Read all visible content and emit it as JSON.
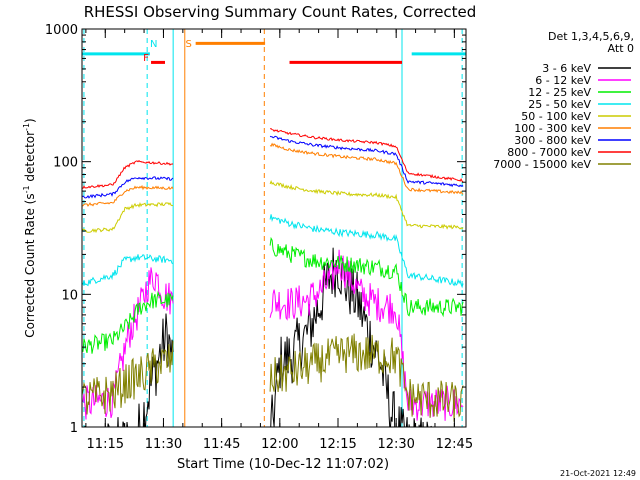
{
  "chart_data": {
    "type": "line",
    "title": "RHESSI Observing Summary Count Rates, Corrected",
    "xlabel": "Start Time (10-Dec-12 11:07:02)",
    "ylabel_main": "Corrected Count Rate (s",
    "ylabel_sup1": "-1",
    "ylabel_mid": " detector",
    "ylabel_sup2": "-1",
    "ylabel_end": ")",
    "y_scale": "log",
    "ylim": [
      1,
      1000
    ],
    "xlim_minutes": [
      2,
      101
    ],
    "x_tick_labels": [
      "11:15",
      "11:30",
      "11:45",
      "12:00",
      "12:15",
      "12:30",
      "12:45"
    ],
    "x_tick_minutes": [
      8,
      23,
      38,
      53,
      68,
      83,
      98
    ],
    "y_tick_labels": [
      "1",
      "10",
      "100",
      "1000"
    ],
    "y_tick_values": [
      1,
      10,
      100,
      1000
    ],
    "footer_date": "21-Oct-2021 12:49",
    "legend": {
      "header_line1": "Det 1,3,4,5,6,9,",
      "header_line2": "Att 0",
      "entries": [
        {
          "label": "3 - 6 keV",
          "color": "#000000"
        },
        {
          "label": "6 - 12 keV",
          "color": "#ff00ff"
        },
        {
          "label": "12 - 25 keV",
          "color": "#00ee00"
        },
        {
          "label": "25 - 50 keV",
          "color": "#00e5ee"
        },
        {
          "label": "50 - 100 keV",
          "color": "#cccc00"
        },
        {
          "label": "100 - 300 keV",
          "color": "#ff7f00"
        },
        {
          "label": "300 - 800 keV",
          "color": "#0000ff"
        },
        {
          "label": "800 - 7000 keV",
          "color": "#ff0000"
        },
        {
          "label": "7000 - 15000 keV",
          "color": "#808000"
        }
      ]
    },
    "flag_labels": [
      {
        "text": "N",
        "color": "#00e5ee",
        "x_minute": 20.5
      },
      {
        "text": "F",
        "color": "#ff0000",
        "x_minute": 18.5
      },
      {
        "text": "S",
        "color": "#ff7f00",
        "x_minute": 29.5
      }
    ],
    "flag_bars": [
      {
        "color": "#00e5ee",
        "x0": 2,
        "x1": 19.5,
        "y": 650
      },
      {
        "color": "#ff0000",
        "x0": 19.8,
        "x1": 23.4,
        "y": 560
      },
      {
        "color": "#ff7f00",
        "x0": 31.3,
        "x1": 49.2,
        "y": 780
      },
      {
        "color": "#ff0000",
        "x0": 55.5,
        "x1": 84.5,
        "y": 560
      },
      {
        "color": "#00e5ee",
        "x0": 87,
        "x1": 101,
        "y": 650
      }
    ],
    "vertical_lines": [
      {
        "x_minute": 2.5,
        "color": "#00e5ee",
        "style": "dashed"
      },
      {
        "x_minute": 18.8,
        "color": "#00e5ee",
        "style": "dashed"
      },
      {
        "x_minute": 25.5,
        "color": "#00e5ee",
        "style": "solid"
      },
      {
        "x_minute": 28.5,
        "color": "#ff7f00",
        "style": "solid"
      },
      {
        "x_minute": 49.0,
        "color": "#ff7f00",
        "style": "dashed"
      },
      {
        "x_minute": 84.5,
        "color": "#00e5ee",
        "style": "solid"
      },
      {
        "x_minute": 100.0,
        "color": "#00e5ee",
        "style": "dashed"
      }
    ],
    "segments": [
      {
        "x0": 2,
        "x1": 25.5
      },
      {
        "x0": 50.5,
        "x1": 100.5
      }
    ],
    "series": [
      {
        "name": "3 - 6 keV",
        "color": "#000000",
        "seg1": [
          [
            2,
            0.6
          ],
          [
            16,
            0.8
          ],
          [
            18,
            1.3
          ],
          [
            20,
            2.2
          ],
          [
            22,
            3.5
          ],
          [
            24,
            5
          ],
          [
            25.5,
            3
          ]
        ],
        "seg2": [
          [
            50.5,
            0.8
          ],
          [
            53,
            3
          ],
          [
            56,
            3.5
          ],
          [
            60,
            5
          ],
          [
            63,
            8
          ],
          [
            66,
            14
          ],
          [
            68,
            17
          ],
          [
            70,
            12
          ],
          [
            73,
            9
          ],
          [
            76,
            5
          ],
          [
            79,
            3
          ],
          [
            82,
            1.2
          ],
          [
            85,
            0.8
          ],
          [
            100.5,
            0.6
          ]
        ],
        "noise": 0.5
      },
      {
        "name": "6 - 12 keV",
        "color": "#ff00ff",
        "seg1": [
          [
            2,
            1.5
          ],
          [
            10,
            1.6
          ],
          [
            14,
            5
          ],
          [
            17,
            8
          ],
          [
            19,
            12
          ],
          [
            21,
            14
          ],
          [
            23,
            10
          ],
          [
            25.5,
            9
          ]
        ],
        "seg2": [
          [
            50.5,
            9
          ],
          [
            56,
            8.5
          ],
          [
            60,
            9
          ],
          [
            64,
            11
          ],
          [
            67,
            14
          ],
          [
            68,
            18
          ],
          [
            70,
            15
          ],
          [
            74,
            10
          ],
          [
            78,
            8.5
          ],
          [
            83,
            8
          ],
          [
            86,
            1.5
          ],
          [
            100.5,
            1.5
          ]
        ],
        "noise": 0.3
      },
      {
        "name": "12 - 25 keV",
        "color": "#00ee00",
        "seg1": [
          [
            2,
            4
          ],
          [
            10,
            4.5
          ],
          [
            14,
            6
          ],
          [
            17,
            8
          ],
          [
            20,
            9
          ],
          [
            25.5,
            9
          ]
        ],
        "seg2": [
          [
            50.5,
            23
          ],
          [
            56,
            20
          ],
          [
            62,
            18
          ],
          [
            70,
            17
          ],
          [
            78,
            16
          ],
          [
            83,
            15
          ],
          [
            86,
            8
          ],
          [
            100.5,
            8
          ]
        ],
        "noise": 0.15
      },
      {
        "name": "25 - 50 keV",
        "color": "#00e5ee",
        "seg1": [
          [
            2,
            12
          ],
          [
            10,
            14
          ],
          [
            13,
            18
          ],
          [
            16,
            19
          ],
          [
            25.5,
            18
          ]
        ],
        "seg2": [
          [
            50.5,
            38
          ],
          [
            56,
            34
          ],
          [
            62,
            31
          ],
          [
            70,
            29
          ],
          [
            78,
            28
          ],
          [
            83,
            26
          ],
          [
            86,
            14
          ],
          [
            100.5,
            12
          ]
        ],
        "noise": 0.06
      },
      {
        "name": "50 - 100 keV",
        "color": "#cccc00",
        "seg1": [
          [
            2,
            30
          ],
          [
            10,
            31
          ],
          [
            13,
            44
          ],
          [
            16,
            47
          ],
          [
            25.5,
            48
          ]
        ],
        "seg2": [
          [
            50.5,
            70
          ],
          [
            56,
            64
          ],
          [
            62,
            60
          ],
          [
            70,
            57
          ],
          [
            78,
            56
          ],
          [
            83,
            54
          ],
          [
            86,
            33
          ],
          [
            100.5,
            32
          ]
        ],
        "noise": 0.03
      },
      {
        "name": "100 - 300 keV",
        "color": "#ff7f00",
        "seg1": [
          [
            2,
            47
          ],
          [
            10,
            49
          ],
          [
            13,
            60
          ],
          [
            16,
            64
          ],
          [
            25.5,
            63
          ]
        ],
        "seg2": [
          [
            50.5,
            135
          ],
          [
            56,
            122
          ],
          [
            62,
            115
          ],
          [
            70,
            108
          ],
          [
            78,
            104
          ],
          [
            83,
            97
          ],
          [
            86,
            62
          ],
          [
            100.5,
            58
          ]
        ],
        "noise": 0.025
      },
      {
        "name": "300 - 800 keV",
        "color": "#0000ff",
        "seg1": [
          [
            2,
            54
          ],
          [
            10,
            57
          ],
          [
            13,
            70
          ],
          [
            16,
            76
          ],
          [
            25.5,
            74
          ]
        ],
        "seg2": [
          [
            50.5,
            155
          ],
          [
            56,
            142
          ],
          [
            62,
            133
          ],
          [
            70,
            126
          ],
          [
            78,
            121
          ],
          [
            83,
            114
          ],
          [
            86,
            71
          ],
          [
            100.5,
            66
          ]
        ],
        "noise": 0.025
      },
      {
        "name": "800 - 7000 keV",
        "color": "#ff0000",
        "seg1": [
          [
            2,
            64
          ],
          [
            10,
            67
          ],
          [
            13,
            90
          ],
          [
            16,
            100
          ],
          [
            25.5,
            96
          ]
        ],
        "seg2": [
          [
            50.5,
            175
          ],
          [
            56,
            162
          ],
          [
            62,
            152
          ],
          [
            70,
            144
          ],
          [
            78,
            139
          ],
          [
            83,
            130
          ],
          [
            86,
            82
          ],
          [
            100.5,
            72
          ]
        ],
        "noise": 0.02
      },
      {
        "name": "7000 - 15000 keV",
        "color": "#808000",
        "seg1": [
          [
            2,
            1.6
          ],
          [
            10,
            1.8
          ],
          [
            14,
            2.2
          ],
          [
            18,
            2.5
          ],
          [
            22,
            3
          ],
          [
            25.5,
            3.2
          ]
        ],
        "seg2": [
          [
            50.5,
            2.3
          ],
          [
            56,
            2.6
          ],
          [
            62,
            3
          ],
          [
            70,
            3.6
          ],
          [
            78,
            3.5
          ],
          [
            83,
            3.4
          ],
          [
            86,
            1.7
          ],
          [
            100.5,
            1.5
          ]
        ],
        "noise": 0.35
      }
    ]
  }
}
